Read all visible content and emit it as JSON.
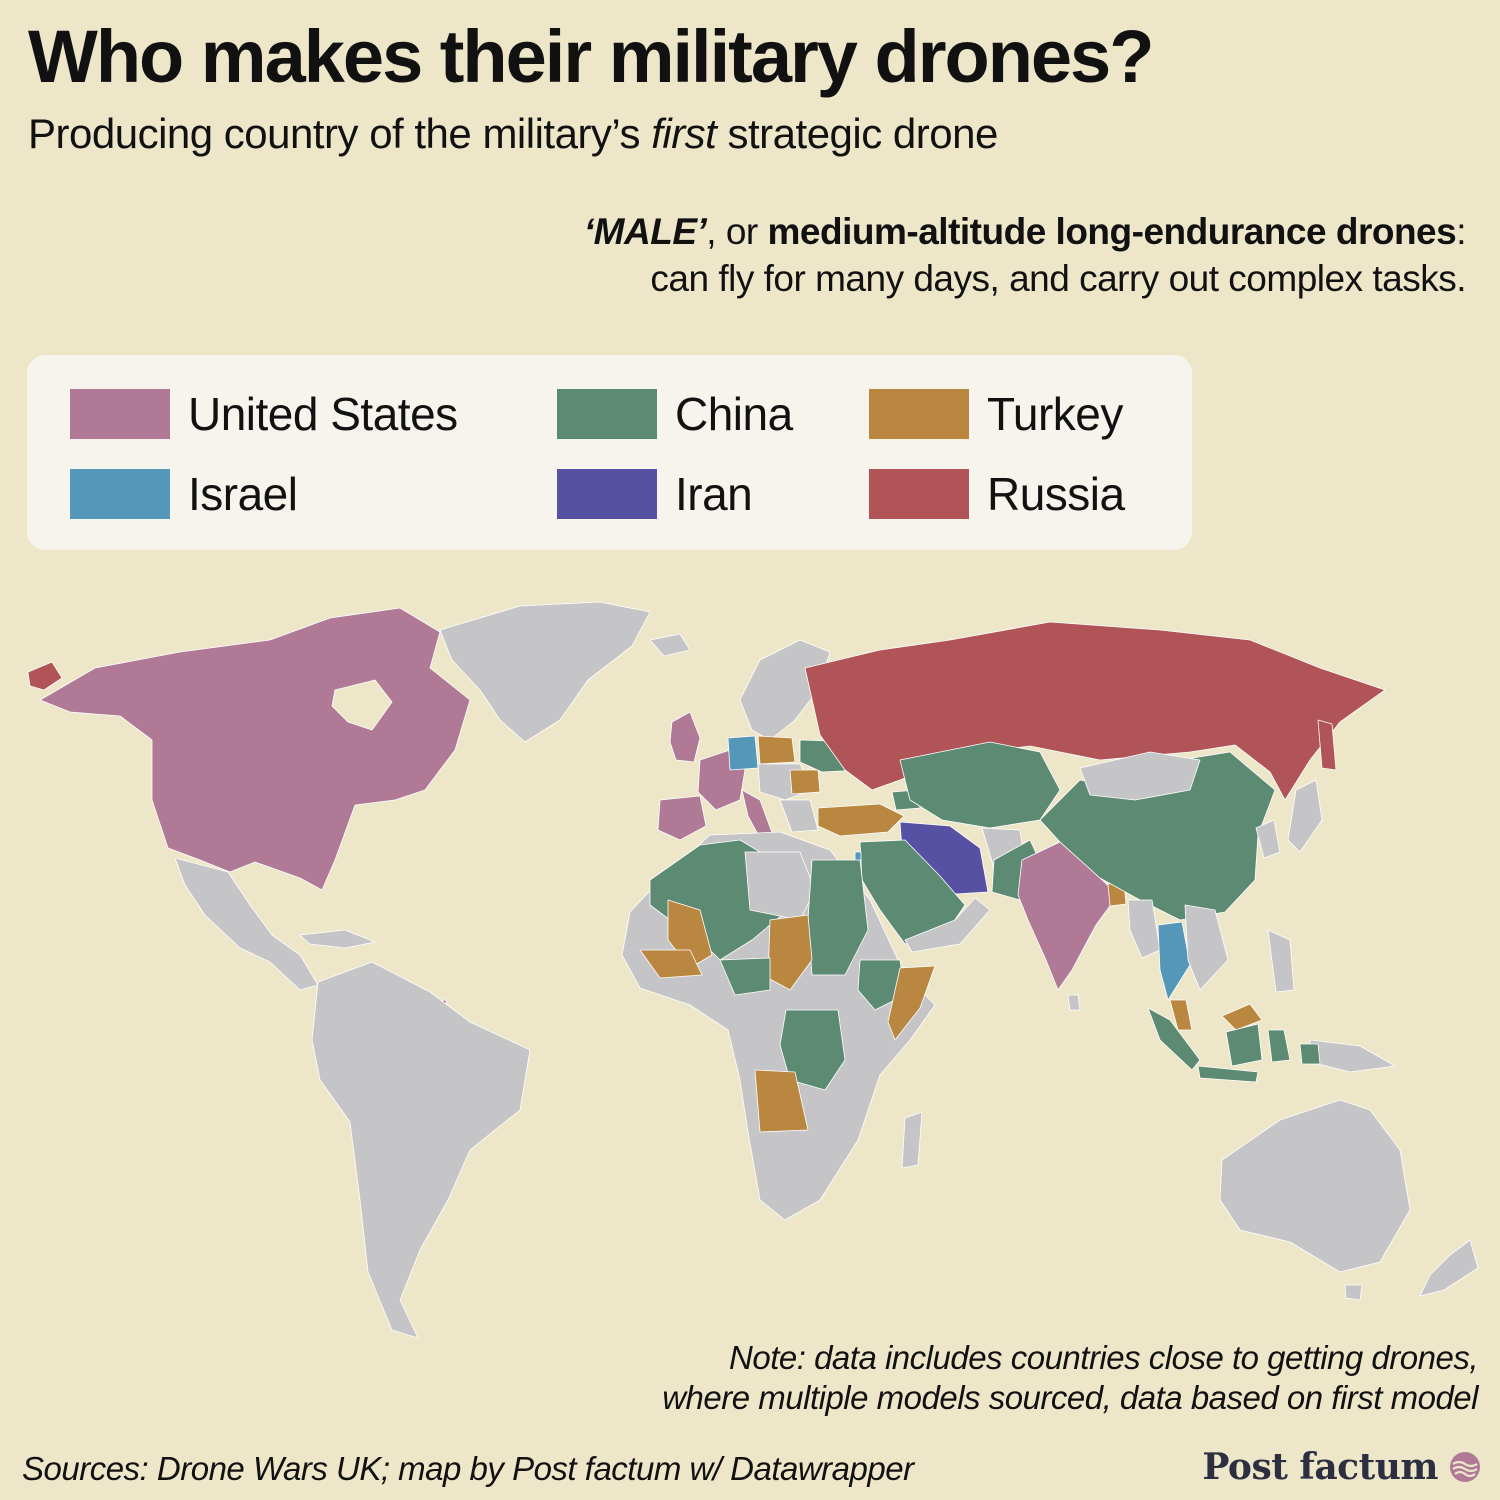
{
  "header": {
    "title": "Who makes their military drones?",
    "subtitle_pre": "Producing country of the military’s ",
    "subtitle_em": "first",
    "subtitle_post": " strategic drone"
  },
  "definition": {
    "term": "‘MALE’",
    "connector": ", or ",
    "full_term": "medium-altitude long-endurance drones",
    "colon": ":",
    "description": "can fly for many days, and carry out complex tasks."
  },
  "legend": {
    "items": [
      {
        "label": "United States",
        "color": "#b07a97"
      },
      {
        "label": "China",
        "color": "#5d8a73"
      },
      {
        "label": "Turkey",
        "color": "#b98740"
      },
      {
        "label": "Israel",
        "color": "#5597b8"
      },
      {
        "label": "Iran",
        "color": "#5651a3"
      },
      {
        "label": "Russia",
        "color": "#b05458"
      }
    ]
  },
  "map": {
    "no_data_color": "#c5c4c6",
    "background": "#ede6c9"
  },
  "note": {
    "line1": "Note: data includes countries close to getting drones,",
    "line2": "where multiple models sourced, data based on first model"
  },
  "footer": {
    "sources": "Sources: Drone Wars UK; map by Post factum w/ Datawrapper",
    "brand": "Post factum",
    "brand_icon": "post-factum-logo-icon"
  }
}
